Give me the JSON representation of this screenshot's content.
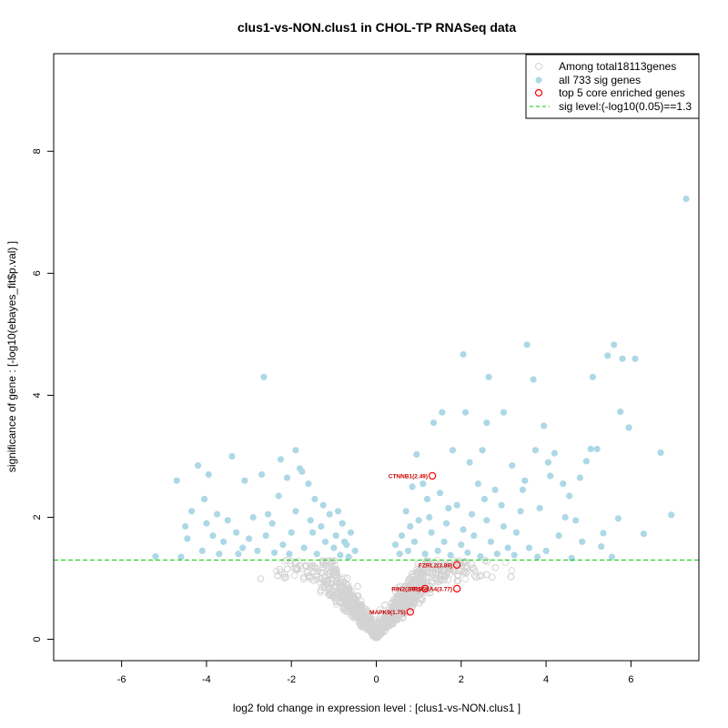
{
  "colors": {
    "background": "#d3d3d3",
    "significant": "#add8e6",
    "core": "#ff0000",
    "threshold": "#00cc00",
    "frame": "#000000"
  },
  "chart_data": {
    "type": "scatter",
    "title": "clus1-vs-NON.clus1 in CHOL-TP RNASeq data",
    "xlabel": "log2 fold change in expression level : [clus1-vs-NON.clus1 ]",
    "ylabel": "significance of gene : [-log10(ebayes_fit$p.val) ]",
    "xlim": [
      -7.6,
      7.6
    ],
    "ylim": [
      -0.35,
      9.6
    ],
    "xticks": [
      "-6",
      "-4",
      "-2",
      "0",
      "2",
      "4",
      "6"
    ],
    "yticks": [
      "0",
      "2",
      "4",
      "6",
      "8"
    ],
    "threshold": 1.3,
    "legend": {
      "position": "top-right",
      "entries": [
        {
          "marker": "background",
          "label": "Among total18113genes"
        },
        {
          "marker": "significant",
          "label": "all 733 sig genes"
        },
        {
          "marker": "core",
          "label": "top 5 core enriched genes"
        },
        {
          "marker": "threshold",
          "label": "sig level:(-log10(0.05)==1.3"
        }
      ]
    },
    "series": [
      {
        "role": "significant",
        "points": [
          [
            7.3,
            7.22
          ],
          [
            6.95,
            2.04
          ],
          [
            6.7,
            3.06
          ],
          [
            6.3,
            1.73
          ],
          [
            6.1,
            4.6
          ],
          [
            5.95,
            3.47
          ],
          [
            5.8,
            4.6
          ],
          [
            5.75,
            3.73
          ],
          [
            5.6,
            4.83
          ],
          [
            5.45,
            4.65
          ],
          [
            5.7,
            1.98
          ],
          [
            5.35,
            1.74
          ],
          [
            5.2,
            3.12
          ],
          [
            5.1,
            4.3
          ],
          [
            5.05,
            3.12
          ],
          [
            4.95,
            2.92
          ],
          [
            5.3,
            1.52
          ],
          [
            4.8,
            2.65
          ],
          [
            4.7,
            1.95
          ],
          [
            4.55,
            2.35
          ],
          [
            4.4,
            2.55
          ],
          [
            4.2,
            3.05
          ],
          [
            4.1,
            2.68
          ],
          [
            3.95,
            3.5
          ],
          [
            3.85,
            2.15
          ],
          [
            3.7,
            4.26
          ],
          [
            3.75,
            3.1
          ],
          [
            3.5,
            2.6
          ],
          [
            3.4,
            2.1
          ],
          [
            3.55,
            4.83
          ],
          [
            3.2,
            2.85
          ],
          [
            3.0,
            3.72
          ],
          [
            2.8,
            2.45
          ],
          [
            2.65,
            4.3
          ],
          [
            2.6,
            3.55
          ],
          [
            2.5,
            3.1
          ],
          [
            2.4,
            2.55
          ],
          [
            2.2,
            2.9
          ],
          [
            2.1,
            3.72
          ],
          [
            2.05,
            4.67
          ],
          [
            1.8,
            3.1
          ],
          [
            1.7,
            2.15
          ],
          [
            1.55,
            3.72
          ],
          [
            1.35,
            3.55
          ],
          [
            1.2,
            2.3
          ],
          [
            0.95,
            3.03
          ],
          [
            0.85,
            2.5
          ],
          [
            0.7,
            2.1
          ],
          [
            0.45,
            1.55
          ],
          [
            0.6,
            1.7
          ],
          [
            0.8,
            1.85
          ],
          [
            1.0,
            1.95
          ],
          [
            1.3,
            1.75
          ],
          [
            1.6,
            1.6
          ],
          [
            2.0,
            1.55
          ],
          [
            2.3,
            1.7
          ],
          [
            2.7,
            1.6
          ],
          [
            3.1,
            1.5
          ],
          [
            3.6,
            1.5
          ],
          [
            4.0,
            1.45
          ],
          [
            4.3,
            1.7
          ],
          [
            1.1,
            2.55
          ],
          [
            1.5,
            2.4
          ],
          [
            1.9,
            2.2
          ],
          [
            2.25,
            2.05
          ],
          [
            2.6,
            1.95
          ],
          [
            3.0,
            1.85
          ],
          [
            3.3,
            1.75
          ],
          [
            0.55,
            1.4
          ],
          [
            0.75,
            1.45
          ],
          [
            1.15,
            1.4
          ],
          [
            1.45,
            1.45
          ],
          [
            1.75,
            1.38
          ],
          [
            2.15,
            1.42
          ],
          [
            2.45,
            1.36
          ],
          [
            2.85,
            1.4
          ],
          [
            3.25,
            1.38
          ],
          [
            3.8,
            1.35
          ],
          [
            4.6,
            1.33
          ],
          [
            1.25,
            2.0
          ],
          [
            1.65,
            1.9
          ],
          [
            2.05,
            1.8
          ],
          [
            2.55,
            2.3
          ],
          [
            2.95,
            2.2
          ],
          [
            3.45,
            2.45
          ],
          [
            4.05,
            2.9
          ],
          [
            4.45,
            2.0
          ],
          [
            4.85,
            1.6
          ],
          [
            5.55,
            1.35
          ],
          [
            0.9,
            1.6
          ],
          [
            -0.5,
            1.45
          ],
          [
            -0.6,
            1.75
          ],
          [
            -0.7,
            1.55
          ],
          [
            -0.8,
            1.9
          ],
          [
            -0.95,
            1.7
          ],
          [
            -1.1,
            2.05
          ],
          [
            -1.2,
            1.6
          ],
          [
            -1.3,
            1.85
          ],
          [
            -1.45,
            2.3
          ],
          [
            -1.55,
            1.95
          ],
          [
            -1.7,
            1.5
          ],
          [
            -1.8,
            2.8
          ],
          [
            -1.9,
            2.1
          ],
          [
            -2.0,
            1.75
          ],
          [
            -2.1,
            2.65
          ],
          [
            -2.2,
            1.55
          ],
          [
            -2.3,
            2.35
          ],
          [
            -2.45,
            1.9
          ],
          [
            -2.55,
            2.05
          ],
          [
            -2.65,
            4.3
          ],
          [
            -2.7,
            2.7
          ],
          [
            -2.8,
            1.45
          ],
          [
            -3.0,
            1.65
          ],
          [
            -3.1,
            2.6
          ],
          [
            -3.25,
            1.4
          ],
          [
            -3.4,
            3.0
          ],
          [
            -3.5,
            1.95
          ],
          [
            -3.6,
            1.6
          ],
          [
            -3.75,
            2.05
          ],
          [
            -3.85,
            1.7
          ],
          [
            -3.95,
            2.7
          ],
          [
            -4.05,
            2.3
          ],
          [
            -4.2,
            2.85
          ],
          [
            -4.35,
            2.1
          ],
          [
            -4.45,
            1.65
          ],
          [
            -4.6,
            1.35
          ],
          [
            -4.7,
            2.6
          ],
          [
            -5.2,
            1.36
          ],
          [
            -3.7,
            1.4
          ],
          [
            -4.0,
            1.9
          ],
          [
            -1.6,
            2.55
          ],
          [
            -1.4,
            1.4
          ],
          [
            -1.0,
            1.5
          ],
          [
            -0.85,
            1.38
          ],
          [
            -0.65,
            1.35
          ],
          [
            -2.4,
            1.42
          ],
          [
            -2.6,
            1.7
          ],
          [
            -2.9,
            2.0
          ],
          [
            -3.3,
            1.75
          ],
          [
            -1.75,
            2.75
          ],
          [
            -1.9,
            3.1
          ],
          [
            -2.05,
            1.4
          ],
          [
            -1.25,
            2.2
          ],
          [
            -0.75,
            1.6
          ],
          [
            -4.1,
            1.45
          ],
          [
            -4.5,
            1.85
          ],
          [
            -3.15,
            1.5
          ],
          [
            -2.25,
            2.95
          ],
          [
            -1.5,
            1.75
          ],
          [
            -0.9,
            2.1
          ]
        ]
      },
      {
        "role": "core",
        "points": [
          [
            1.32,
            2.68
          ],
          [
            1.9,
            1.22
          ],
          [
            1.9,
            0.83
          ],
          [
            1.15,
            0.83
          ],
          [
            0.8,
            0.45
          ]
        ],
        "labels": [
          "CTNNB1(2.49)",
          "FZRL2(3.89)",
          "RPS6KA4(3.77)",
          "RIN2(2.91)",
          "MAPK9(1.75)"
        ]
      }
    ]
  }
}
